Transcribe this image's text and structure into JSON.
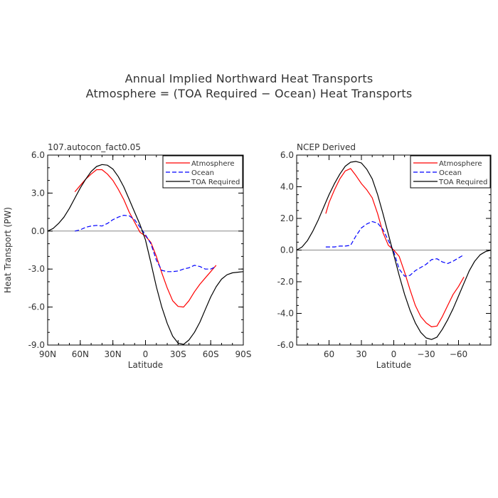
{
  "title_line1": "Annual Implied Northward Heat Transports",
  "title_line2": "Atmosphere = (TOA Required − Ocean) Heat Transports",
  "colors": {
    "atmosphere": "#ff0000",
    "ocean": "#0000ff",
    "toa": "#000000",
    "zero_line": "#888888"
  },
  "chart_data": [
    {
      "type": "line",
      "panel_title": "107.autocon_fact0.05",
      "xlabel": "Latitude",
      "ylabel": "Heat Transport (PW)",
      "xlim": [
        90,
        -90
      ],
      "ylim": [
        -9,
        6
      ],
      "xticks": [
        90,
        60,
        30,
        0,
        -30,
        -60,
        -90
      ],
      "xtick_labels": [
        "90N",
        "60N",
        "30N",
        "0",
        "30S",
        "60S",
        "90S"
      ],
      "yticks": [
        6,
        3,
        0,
        -3,
        -6,
        -9
      ],
      "ytick_labels": [
        "6.0",
        "3.0",
        "0.0",
        "-3.0",
        "-6.0",
        "-9.0"
      ],
      "legend": [
        "Atmosphere",
        "Ocean",
        "TOA Required"
      ],
      "legend_position": "top-right",
      "series": [
        {
          "name": "Atmosphere",
          "style": "solid",
          "color": "#ff0000",
          "x": [
            65,
            60,
            55,
            50,
            45,
            40,
            35,
            30,
            25,
            20,
            15,
            10,
            5,
            0,
            -5,
            -10,
            -15,
            -20,
            -25,
            -30,
            -35,
            -40,
            -45,
            -50,
            -55,
            -60,
            -65
          ],
          "y": [
            3.1,
            3.6,
            4.1,
            4.5,
            4.85,
            4.85,
            4.5,
            4.0,
            3.3,
            2.5,
            1.5,
            0.7,
            -0.1,
            -0.4,
            -0.9,
            -2.0,
            -3.3,
            -4.5,
            -5.5,
            -5.95,
            -6.0,
            -5.5,
            -4.8,
            -4.2,
            -3.7,
            -3.2,
            -2.7
          ]
        },
        {
          "name": "Ocean",
          "style": "dashed",
          "color": "#0000ff",
          "x": [
            65,
            60,
            55,
            50,
            45,
            40,
            35,
            30,
            25,
            20,
            15,
            10,
            5,
            0,
            -5,
            -10,
            -15,
            -20,
            -25,
            -30,
            -35,
            -40,
            -45,
            -50,
            -55,
            -60,
            -65
          ],
          "y": [
            0.0,
            0.1,
            0.3,
            0.4,
            0.45,
            0.4,
            0.6,
            0.9,
            1.1,
            1.25,
            1.2,
            0.9,
            0.3,
            -0.3,
            -1.0,
            -2.3,
            -3.1,
            -3.2,
            -3.2,
            -3.15,
            -3.0,
            -2.9,
            -2.7,
            -2.8,
            -3.0,
            -3.0,
            -2.8
          ]
        },
        {
          "name": "TOA Required",
          "style": "solid",
          "color": "#000000",
          "x": [
            90,
            85,
            80,
            75,
            70,
            65,
            60,
            55,
            50,
            45,
            40,
            35,
            30,
            25,
            20,
            15,
            10,
            5,
            0,
            -5,
            -10,
            -15,
            -20,
            -25,
            -30,
            -35,
            -40,
            -45,
            -50,
            -55,
            -60,
            -65,
            -70,
            -75,
            -80,
            -85,
            -90
          ],
          "y": [
            0.0,
            0.2,
            0.6,
            1.1,
            1.8,
            2.6,
            3.4,
            4.1,
            4.7,
            5.1,
            5.25,
            5.2,
            4.9,
            4.3,
            3.5,
            2.5,
            1.5,
            0.5,
            -0.7,
            -2.5,
            -4.4,
            -6.0,
            -7.3,
            -8.3,
            -8.85,
            -8.95,
            -8.6,
            -8.0,
            -7.2,
            -6.2,
            -5.2,
            -4.4,
            -3.8,
            -3.45,
            -3.3,
            -3.25,
            -3.2
          ]
        }
      ]
    },
    {
      "type": "line",
      "panel_title": "NCEP Derived",
      "xlabel": "Latitude",
      "xlim": [
        90,
        -90
      ],
      "ylim": [
        -6,
        6
      ],
      "xticks": [
        60,
        30,
        0,
        -30,
        -60
      ],
      "xtick_labels": [
        "60",
        "30",
        "0",
        "−30",
        "−60"
      ],
      "yticks": [
        6,
        4,
        2,
        0,
        -2,
        -4,
        -6
      ],
      "ytick_labels": [
        "6.0",
        "4.0",
        "2.0",
        "0.0",
        "-2.0",
        "-4.0",
        "-6.0"
      ],
      "legend": [
        "Atmosphere",
        "Ocean",
        "TOA Required"
      ],
      "legend_position": "top-right",
      "series": [
        {
          "name": "Atmosphere",
          "style": "solid",
          "color": "#ff0000",
          "x": [
            63,
            60,
            55,
            50,
            45,
            40,
            35,
            30,
            25,
            20,
            15,
            10,
            5,
            0,
            -5,
            -10,
            -15,
            -20,
            -25,
            -30,
            -35,
            -40,
            -45,
            -50,
            -55,
            -60,
            -65
          ],
          "y": [
            2.3,
            3.0,
            3.8,
            4.5,
            5.0,
            5.15,
            4.7,
            4.2,
            3.8,
            3.3,
            2.3,
            1.1,
            0.3,
            0.0,
            -0.4,
            -1.4,
            -2.5,
            -3.5,
            -4.2,
            -4.6,
            -4.85,
            -4.8,
            -4.2,
            -3.5,
            -2.8,
            -2.3,
            -1.7
          ]
        },
        {
          "name": "Ocean",
          "style": "dashed",
          "color": "#0000ff",
          "x": [
            63,
            60,
            55,
            50,
            45,
            40,
            35,
            30,
            25,
            20,
            15,
            10,
            5,
            0,
            -5,
            -10,
            -15,
            -20,
            -25,
            -30,
            -35,
            -40,
            -45,
            -50,
            -55,
            -60,
            -65
          ],
          "y": [
            0.2,
            0.2,
            0.2,
            0.25,
            0.25,
            0.3,
            0.9,
            1.4,
            1.65,
            1.8,
            1.7,
            1.3,
            0.6,
            -0.1,
            -1.2,
            -1.65,
            -1.6,
            -1.3,
            -1.1,
            -0.9,
            -0.6,
            -0.55,
            -0.75,
            -0.85,
            -0.7,
            -0.5,
            -0.3
          ]
        },
        {
          "name": "TOA Required",
          "style": "solid",
          "color": "#000000",
          "x": [
            90,
            85,
            80,
            75,
            70,
            65,
            60,
            55,
            50,
            45,
            40,
            35,
            30,
            25,
            20,
            15,
            10,
            5,
            0,
            -5,
            -10,
            -15,
            -20,
            -25,
            -30,
            -35,
            -40,
            -45,
            -50,
            -55,
            -60,
            -65,
            -70,
            -75,
            -80,
            -85,
            -90
          ],
          "y": [
            0.0,
            0.2,
            0.6,
            1.2,
            1.9,
            2.7,
            3.5,
            4.2,
            4.8,
            5.3,
            5.55,
            5.6,
            5.5,
            5.1,
            4.5,
            3.5,
            2.3,
            1.0,
            -0.3,
            -1.6,
            -2.8,
            -3.8,
            -4.6,
            -5.2,
            -5.55,
            -5.65,
            -5.5,
            -5.0,
            -4.4,
            -3.7,
            -2.9,
            -2.1,
            -1.3,
            -0.7,
            -0.3,
            -0.1,
            0.0
          ]
        }
      ]
    }
  ]
}
